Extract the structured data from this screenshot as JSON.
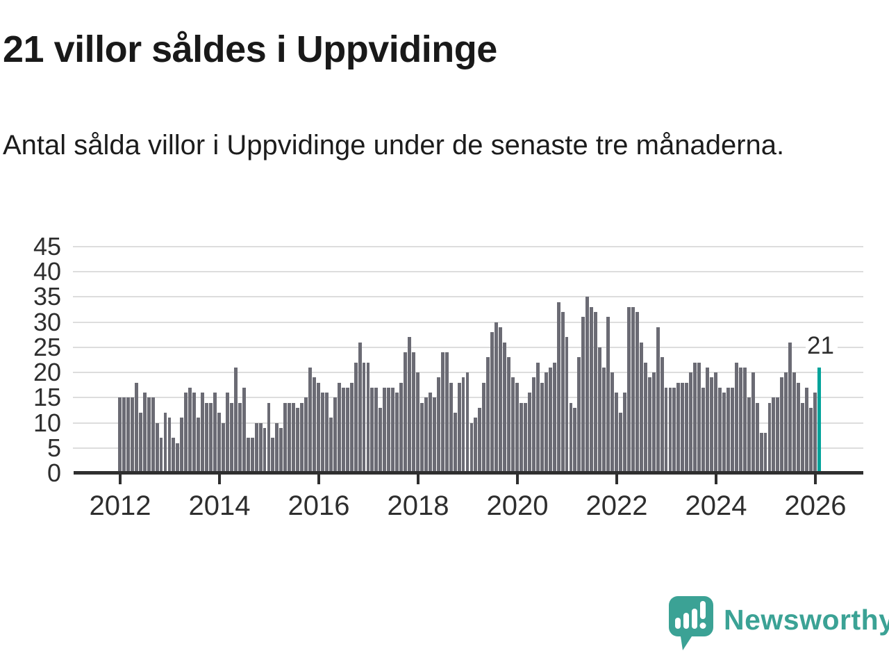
{
  "header": {
    "title": "21 villor såldes i Uppvidinge",
    "subtitle": "Antal sålda villor i Uppvidinge under de senaste tre månaderna."
  },
  "chart_data": {
    "type": "bar",
    "title": "21 villor såldes i Uppvidinge",
    "xlabel": "",
    "ylabel": "",
    "x_unit": "month",
    "x_tick_labels": [
      "2012",
      "2014",
      "2016",
      "2018",
      "2020",
      "2022",
      "2024",
      "2026"
    ],
    "y_ticks": [
      0,
      5,
      10,
      15,
      20,
      25,
      30,
      35,
      40,
      45
    ],
    "ylim": [
      0,
      45
    ],
    "grid": true,
    "bar_color": "#6b6b74",
    "values": [
      15,
      15,
      15,
      15,
      18,
      12,
      16,
      15,
      15,
      10,
      7,
      12,
      11,
      7,
      6,
      11,
      16,
      17,
      16,
      11,
      16,
      14,
      14,
      16,
      12,
      10,
      16,
      14,
      21,
      14,
      17,
      7,
      7,
      10,
      10,
      9,
      14,
      7,
      10,
      9,
      14,
      14,
      14,
      13,
      14,
      15,
      21,
      19,
      18,
      16,
      16,
      11,
      15,
      18,
      17,
      17,
      18,
      22,
      26,
      22,
      22,
      17,
      17,
      13,
      17,
      17,
      17,
      16,
      18,
      24,
      27,
      24,
      20,
      14,
      15,
      16,
      15,
      19,
      24,
      24,
      18,
      12,
      18,
      19,
      20,
      10,
      11,
      13,
      18,
      23,
      28,
      30,
      29,
      26,
      23,
      19,
      18,
      14,
      14,
      16,
      19,
      22,
      18,
      20,
      21,
      22,
      34,
      32,
      27,
      14,
      13,
      23,
      31,
      35,
      33,
      32,
      25,
      21,
      31,
      20,
      16,
      12,
      16,
      33,
      33,
      32,
      26,
      22,
      19,
      20,
      29,
      23,
      17,
      17,
      17,
      18,
      18,
      18,
      20,
      22,
      22,
      17,
      21,
      19,
      20,
      17,
      16,
      17,
      17,
      22,
      21,
      21,
      15,
      20,
      14,
      8,
      8,
      14,
      15,
      15,
      19,
      20,
      26,
      20,
      18,
      14,
      17,
      13,
      16,
      21
    ],
    "highlight": {
      "index": 169,
      "value": 21,
      "label": "21",
      "color": "#00a39a"
    }
  },
  "annotation": {
    "label": "21"
  },
  "logo": {
    "text": "Newsworthy",
    "color": "#3ba295",
    "icon": "bar-chart-speech-bubble"
  },
  "colors": {
    "background": "#ffffff",
    "bar": "#6b6b74",
    "highlight": "#00a39a",
    "gridline": "#dddddd",
    "axis": "#2f2f2f",
    "text": "#1c1c1c",
    "logo_teal": "#3ba295"
  }
}
